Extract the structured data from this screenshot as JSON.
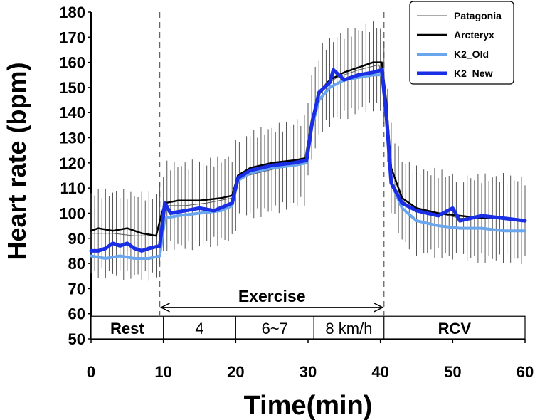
{
  "chart_data": {
    "type": "line",
    "xlabel": "Time(min)",
    "ylabel": "Heart rate (bpm)",
    "xlim": [
      0,
      60
    ],
    "ylim": [
      50,
      180
    ],
    "x_ticks": [
      "0",
      "10",
      "20",
      "30",
      "40",
      "50",
      "60"
    ],
    "y_ticks": [
      "50",
      "60",
      "70",
      "80",
      "90",
      "100",
      "110",
      "120",
      "130",
      "140",
      "150",
      "160",
      "170",
      "180"
    ],
    "grid": false,
    "legend_position": "top-right",
    "phase_markers_min": [
      9.5,
      40.5
    ],
    "exercise_label": "Exercise",
    "exercise_span_min": [
      9.5,
      40.5
    ],
    "phase_band": {
      "y_range": [
        50,
        59
      ],
      "segments": [
        {
          "label": "Rest",
          "start": 0,
          "end": 10,
          "bold": true
        },
        {
          "label": "4",
          "start": 10,
          "end": 20,
          "bold": false
        },
        {
          "label": "6~7",
          "start": 20,
          "end": 30.8,
          "bold": false
        },
        {
          "label": "8 km/h",
          "start": 30.8,
          "end": 40.5,
          "bold": false
        },
        {
          "label": "RCV",
          "start": 40.5,
          "end": 60,
          "bold": true
        }
      ]
    },
    "series": [
      {
        "name": "Patagonia",
        "color": "#555555",
        "width": 1,
        "error_bar": true,
        "x": [
          0,
          3,
          6,
          9,
          9.6,
          10.5,
          13,
          16,
          19.5,
          20.3,
          23,
          26,
          29.5,
          30.5,
          32,
          34,
          37,
          39.8,
          40.5,
          41.5,
          43,
          45,
          48,
          51,
          54,
          57,
          60
        ],
        "y": [
          92,
          92,
          91,
          91,
          97,
          103,
          103,
          104,
          106,
          114,
          116,
          118,
          121,
          138,
          150,
          154,
          157,
          159,
          152,
          118,
          105,
          101,
          100,
          98,
          98,
          98,
          97
        ],
        "err": 16
      },
      {
        "name": "Arcteryx",
        "color": "#000000",
        "width": 2.5,
        "x": [
          0,
          1,
          3,
          5,
          7,
          9,
          9.6,
          10.2,
          12,
          15,
          18,
          19.5,
          20.3,
          22,
          25,
          28,
          29.8,
          30.5,
          31.5,
          33,
          35,
          37,
          39,
          40.2,
          40.8,
          41.5,
          43,
          45,
          48,
          51,
          54,
          57,
          60
        ],
        "y": [
          93,
          94,
          93,
          94,
          92,
          91,
          98,
          104,
          105,
          105,
          106,
          107,
          115,
          118,
          120,
          121,
          122,
          137,
          148,
          153,
          156,
          158,
          160,
          160,
          145,
          118,
          106,
          102,
          100,
          99,
          98,
          98,
          97
        ]
      },
      {
        "name": "K2_Old",
        "color": "#6aa6ee",
        "width": 4,
        "x": [
          0,
          2,
          4,
          6,
          8,
          9.5,
          10.2,
          12,
          15,
          18,
          19.5,
          20.3,
          22,
          25,
          28,
          29.8,
          30.5,
          31.5,
          33,
          35,
          37,
          39,
          40.2,
          40.8,
          41.5,
          43,
          45,
          48,
          51,
          54,
          57,
          60
        ],
        "y": [
          83,
          82,
          83,
          82,
          82,
          83,
          98,
          99,
          100,
          101,
          103,
          113,
          116,
          118,
          119,
          120,
          134,
          145,
          150,
          153,
          154,
          155,
          155,
          140,
          112,
          102,
          97,
          95,
          94,
          94,
          93,
          93
        ]
      },
      {
        "name": "K2_New",
        "color": "#1a2ee6",
        "width": 5,
        "x": [
          0,
          1,
          2,
          3,
          4,
          5,
          6,
          7,
          8,
          9.5,
          10.2,
          11,
          13,
          15,
          17,
          19.5,
          20.3,
          22,
          25,
          28,
          29.8,
          30.5,
          31.5,
          33,
          33.5,
          35,
          37,
          39,
          40.2,
          40.8,
          41.5,
          43,
          45,
          48,
          50,
          51,
          54,
          57,
          60
        ],
        "y": [
          85,
          85,
          86,
          88,
          87,
          88,
          86,
          85,
          86,
          87,
          104,
          100,
          101,
          102,
          101,
          104,
          114,
          117,
          119,
          120,
          121,
          135,
          148,
          152,
          157,
          153,
          155,
          156,
          157,
          140,
          112,
          104,
          101,
          99,
          102,
          97,
          99,
          98,
          97
        ]
      }
    ]
  }
}
